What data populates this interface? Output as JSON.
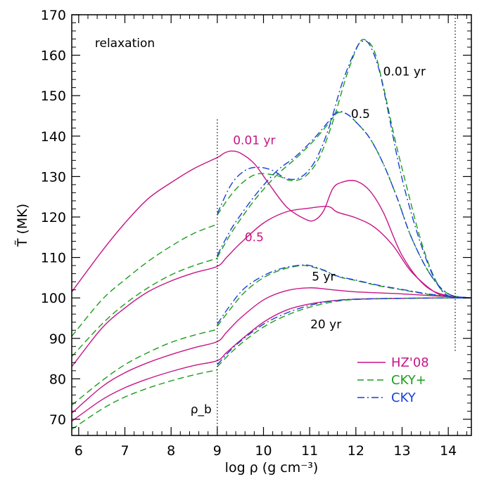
{
  "chart_data": {
    "type": "line",
    "title": "",
    "xlabel": "log ρ  (g cm⁻³)",
    "ylabel": "T̃  (MK)",
    "xlim": [
      5.85,
      14.5
    ],
    "ylim": [
      66,
      170
    ],
    "x_ticks": [
      6,
      7,
      8,
      9,
      10,
      11,
      12,
      13,
      14
    ],
    "y_ticks": [
      70,
      80,
      90,
      100,
      110,
      120,
      130,
      140,
      150,
      160,
      170
    ],
    "grid": false,
    "legend_position": "bottom-right",
    "vertical_markers": [
      {
        "x": 9.0,
        "label": "ρ_b"
      },
      {
        "x": 14.15,
        "label": ""
      }
    ],
    "annotations": [
      {
        "text": "relaxation",
        "x": 7.0,
        "y": 162,
        "color": "#000000"
      },
      {
        "text": "0.01 yr",
        "x": 13.05,
        "y": 155,
        "color": "#000000"
      },
      {
        "text": "0.5",
        "x": 12.1,
        "y": 144.5,
        "color": "#000000"
      },
      {
        "text": "5 yr",
        "x": 11.3,
        "y": 104.3,
        "color": "#000000"
      },
      {
        "text": "20 yr",
        "x": 11.35,
        "y": 92.5,
        "color": "#000000"
      },
      {
        "text": "0.01 yr",
        "x": 9.8,
        "y": 138,
        "color": "#c71585"
      },
      {
        "text": "0.5",
        "x": 9.8,
        "y": 114,
        "color": "#c71585"
      }
    ],
    "series": [
      {
        "name": "HZ'08",
        "style": "solid",
        "color": "#c71585",
        "segments": [
          {
            "x": [
              5.85,
              6.5,
              7,
              7.5,
              8,
              8.5,
              9.0,
              9.15,
              9.3,
              9.5,
              9.8,
              10.1,
              10.5,
              10.9,
              11.1,
              11.3,
              11.5,
              11.7,
              12.0,
              12.3,
              12.6,
              13.0,
              13.5,
              14.0,
              14.5
            ],
            "y": [
              101.5,
              111.5,
              118.5,
              124.5,
              128.5,
              132,
              134.7,
              135.8,
              136.3,
              135.8,
              133.2,
              128.5,
              122.5,
              119.5,
              119.2,
              121.5,
              127,
              128.6,
              128.9,
              126.5,
              121,
              110.5,
              103,
              100.5,
              100
            ]
          },
          {
            "x": [
              5.85,
              6.5,
              7,
              7.5,
              8,
              8.5,
              9.0,
              9.2,
              9.5,
              10.0,
              10.5,
              11.0,
              11.4,
              11.6,
              12.0,
              12.4,
              12.8,
              13.2,
              13.7,
              14.0,
              14.5
            ],
            "y": [
              83,
              92.5,
              97.5,
              101.5,
              104.2,
              106.2,
              107.8,
              110,
              113.5,
              118.5,
              121.3,
              122.2,
              122.6,
              121.2,
              119.8,
              117.5,
              113,
              106.5,
              101.5,
              100.5,
              100
            ]
          },
          {
            "x": [
              5.85,
              6.5,
              7,
              7.5,
              8,
              8.5,
              9.0,
              9.2,
              9.5,
              10.0,
              10.5,
              11.0,
              11.5,
              12.0,
              13.0,
              14.0,
              14.5
            ],
            "y": [
              71.5,
              78,
              81.5,
              84,
              86,
              87.7,
              89.2,
              91.5,
              95,
              99.5,
              101.8,
              102.5,
              102,
              101.5,
              101,
              100.3,
              100
            ]
          },
          {
            "x": [
              5.85,
              6.5,
              7,
              7.5,
              8,
              8.5,
              9.0,
              9.2,
              9.5,
              10.0,
              10.5,
              11.0,
              11.5,
              12.0,
              13.0,
              14.0,
              14.5
            ],
            "y": [
              69.5,
              74.8,
              77.8,
              80,
              81.8,
              83.3,
              84.5,
              86.5,
              89.5,
              94,
              97,
              98.5,
              99.3,
              99.7,
              99.9,
              100,
              100
            ]
          }
        ]
      },
      {
        "name": "CKY+",
        "style": "dashed",
        "color": "#1a9e1a",
        "segments": [
          {
            "x": [
              5.85,
              6.5,
              7,
              7.5,
              8,
              8.5,
              9.0
            ],
            "y": [
              90.5,
              99.5,
              104.5,
              109,
              112.8,
              116,
              118.2
            ]
          },
          {
            "x": [
              9.0,
              9.3,
              9.6,
              9.9,
              10.3,
              10.6,
              10.9,
              11.2,
              11.5,
              11.8,
              12.05,
              12.2,
              12.4,
              12.6,
              12.85,
              13.1,
              13.4,
              13.7,
              14.0,
              14.5
            ],
            "y": [
              120.5,
              125.5,
              129,
              130.7,
              130.2,
              129,
              130,
              134.5,
              143.5,
              155,
              162.5,
              163.8,
              161,
              152,
              139,
              127.5,
              114.5,
              105,
              100.5,
              100
            ]
          },
          {
            "x": [
              5.85,
              6.5,
              7,
              7.5,
              8,
              8.5,
              9.0
            ],
            "y": [
              85.5,
              93.5,
              98.5,
              102.5,
              105.7,
              108,
              109.8
            ]
          },
          {
            "x": [
              9.0,
              9.3,
              9.6,
              9.9,
              10.3,
              10.7,
              11.1,
              11.4,
              11.6,
              11.8,
              12.0,
              12.3,
              12.6,
              12.9,
              13.2,
              13.6,
              14.0,
              14.5
            ],
            "y": [
              110,
              116,
              121,
              125.5,
              130.5,
              134.5,
              139,
              143,
              145.7,
              145.5,
              143.5,
              139.5,
              133,
              124.5,
              115,
              106,
              101,
              100
            ]
          },
          {
            "x": [
              5.85,
              6.5,
              7,
              7.5,
              8,
              8.5,
              9.0
            ],
            "y": [
              73.5,
              79.5,
              83.5,
              86.5,
              89,
              90.8,
              92.2
            ]
          },
          {
            "x": [
              9.0,
              9.3,
              9.6,
              10.0,
              10.4,
              10.8,
              11.0,
              11.3,
              11.6,
              12.0,
              12.5,
              13.0,
              13.5,
              14.0,
              14.5
            ],
            "y": [
              93,
              97.5,
              101.5,
              105,
              107,
              108,
              107.8,
              106.8,
              105.3,
              104.3,
              103,
              102,
              101,
              100.3,
              100
            ]
          },
          {
            "x": [
              5.85,
              6.5,
              7,
              7.5,
              8,
              8.5,
              9.0
            ],
            "y": [
              67.5,
              72.5,
              75.5,
              77.7,
              79.5,
              81,
              82.2
            ]
          },
          {
            "x": [
              9.0,
              9.3,
              9.6,
              10.0,
              10.4,
              10.8,
              11.2,
              11.6,
              12.0,
              13.0,
              14.0,
              14.5
            ],
            "y": [
              83,
              86.5,
              89.5,
              92.8,
              95.2,
              97,
              98.3,
              99.2,
              99.6,
              99.9,
              100,
              100
            ]
          }
        ]
      },
      {
        "name": "CKY",
        "style": "dashdot",
        "color": "#1a3fd6",
        "segments": [
          {
            "x": [
              9.0,
              9.3,
              9.6,
              9.9,
              10.2,
              10.5,
              10.8,
              11.1,
              11.4,
              11.7,
              12.0,
              12.15,
              12.3,
              12.5,
              12.7,
              12.9,
              13.1,
              13.4,
              13.7,
              14.0,
              14.5
            ],
            "y": [
              120.8,
              128,
              131.5,
              132.3,
              131.5,
              129.5,
              129.8,
              133.5,
              141.5,
              153,
              161.5,
              163.5,
              162.5,
              156.5,
              146,
              134.5,
              125,
              113.5,
              104.8,
              100.5,
              100
            ]
          },
          {
            "x": [
              9.0,
              9.3,
              9.6,
              9.9,
              10.3,
              10.7,
              11.1,
              11.4,
              11.6,
              11.8,
              12.0,
              12.3,
              12.6,
              12.9,
              13.2,
              13.6,
              14.0,
              14.5
            ],
            "y": [
              110.5,
              117,
              122,
              126.5,
              131.5,
              135,
              139.5,
              143.5,
              146,
              145.5,
              143.5,
              139.5,
              133,
              124.5,
              115,
              106,
              101,
              100
            ]
          },
          {
            "x": [
              9.0,
              9.3,
              9.6,
              10.0,
              10.4,
              10.8,
              11.0,
              11.3,
              11.6,
              12.0,
              12.5,
              13.0,
              13.5,
              14.0,
              14.5
            ],
            "y": [
              93.5,
              98.5,
              102.5,
              105.5,
              107.3,
              108.1,
              108,
              106.9,
              105.4,
              104.4,
              103.1,
              102.1,
              101.1,
              100.4,
              100
            ]
          },
          {
            "x": [
              9.0,
              9.3,
              9.6,
              10.0,
              10.4,
              10.8,
              11.2,
              11.6,
              12.0,
              13.0,
              14.0,
              14.5
            ],
            "y": [
              83.5,
              87.2,
              90.2,
              93.5,
              95.8,
              97.5,
              98.7,
              99.4,
              99.7,
              99.9,
              100,
              100
            ]
          }
        ]
      }
    ],
    "legend": [
      {
        "label": "HZ'08",
        "style": "solid",
        "color": "#c71585"
      },
      {
        "label": "CKY+",
        "style": "dashed",
        "color": "#1a9e1a"
      },
      {
        "label": "CKY",
        "style": "dashdot",
        "color": "#1a3fd6"
      }
    ]
  }
}
